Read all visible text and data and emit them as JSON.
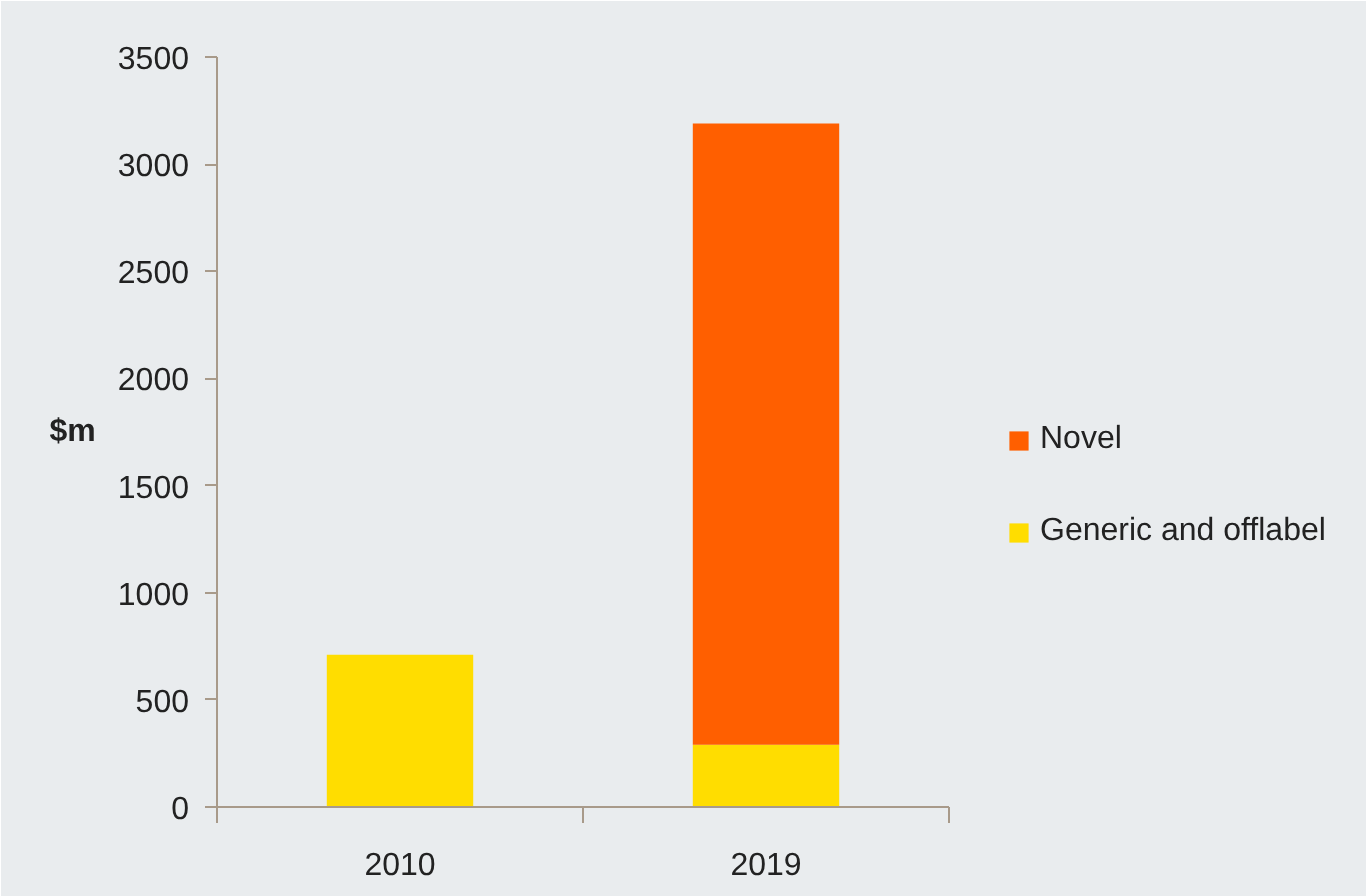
{
  "chart_data": {
    "type": "bar",
    "stacked": true,
    "categories": [
      "2010",
      "2019"
    ],
    "ylabel": "$m",
    "ylim": [
      0,
      3500
    ],
    "yticks": [
      0,
      500,
      1000,
      1500,
      2000,
      2500,
      3000,
      3500
    ],
    "legend": "right",
    "grid": false,
    "series": [
      {
        "name": "Generic and offlabel",
        "color": "#ffdd00",
        "values": [
          710,
          290
        ]
      },
      {
        "name": "Novel",
        "color": "#ff5f00",
        "values": [
          null,
          2900
        ]
      }
    ]
  }
}
